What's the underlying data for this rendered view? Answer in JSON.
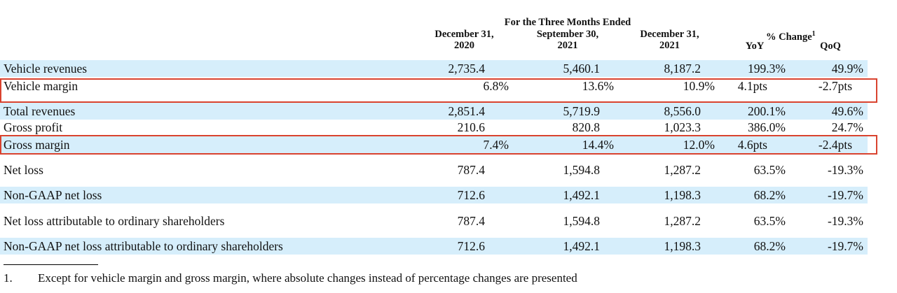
{
  "header": {
    "group_title": "For the Three Months Ended",
    "col1_line1": "December 31,",
    "col1_line2": "2020",
    "col2_line1": "September 30,",
    "col2_line2": "2021",
    "col3_line1": "December 31,",
    "col3_line2": "2021",
    "pct_change": "% Change",
    "pct_note_mark": "1",
    "yoy": "YoY",
    "qoq": "QoQ"
  },
  "rows": [
    {
      "label": "Vehicle revenues",
      "c1": "2,735.4",
      "c2": "5,460.1",
      "c3": "8,187.2",
      "yoy": "199.3%",
      "qoq": "49.9%"
    },
    {
      "label": "Vehicle margin",
      "c1": "6.8%",
      "c2": "13.6%",
      "c3": "10.9%",
      "yoy": "4.1pts",
      "qoq": "-2.7pts"
    },
    {
      "label": "Total revenues",
      "c1": "2,851.4",
      "c2": "5,719.9",
      "c3": "8,556.0",
      "yoy": "200.1%",
      "qoq": "49.6%"
    },
    {
      "label": "Gross profit",
      "c1": "210.6",
      "c2": "820.8",
      "c3": "1,023.3",
      "yoy": "386.0%",
      "qoq": "24.7%"
    },
    {
      "label": "Gross margin",
      "c1": "7.4%",
      "c2": "14.4%",
      "c3": "12.0%",
      "yoy": "4.6pts",
      "qoq": "-2.4pts"
    },
    {
      "label": "Net loss",
      "c1": "787.4",
      "c2": "1,594.8",
      "c3": "1,287.2",
      "yoy": "63.5%",
      "qoq": "-19.3%"
    },
    {
      "label": "Non-GAAP net loss",
      "c1": "712.6",
      "c2": "1,492.1",
      "c3": "1,198.3",
      "yoy": "68.2%",
      "qoq": "-19.7%"
    },
    {
      "label": "Net loss attributable to ordinary shareholders",
      "c1": "787.4",
      "c2": "1,594.8",
      "c3": "1,287.2",
      "yoy": "63.5%",
      "qoq": "-19.3%"
    },
    {
      "label": "Non-GAAP net loss attributable to ordinary shareholders",
      "c1": "712.6",
      "c2": "1,492.1",
      "c3": "1,198.3",
      "yoy": "68.2%",
      "qoq": "-19.7%"
    }
  ],
  "footnote": {
    "number": "1.",
    "text": "Except for vehicle margin and gross margin, where absolute changes instead of percentage changes are presented"
  },
  "colors": {
    "row_shade": "#d6eefb",
    "highlight_border": "#d9432f"
  }
}
